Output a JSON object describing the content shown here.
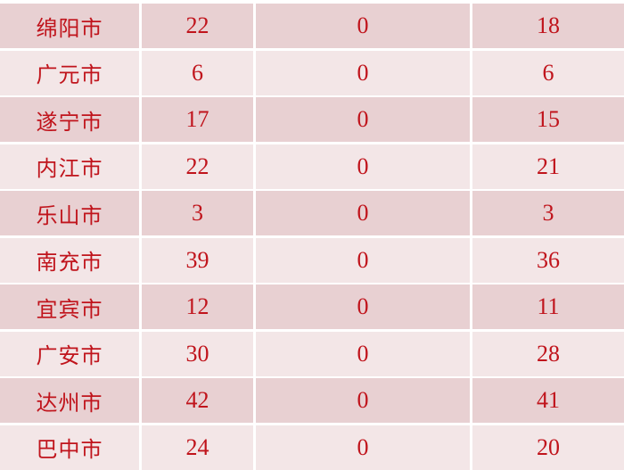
{
  "colors": {
    "text": "#c0141c",
    "row_dark": "#e8d0d2",
    "row_light": "#f3e6e7"
  },
  "rows": [
    {
      "city": "绵阳市",
      "c1": "22",
      "c2": "0",
      "c3": "18"
    },
    {
      "city": "广元市",
      "c1": "6",
      "c2": "0",
      "c3": "6"
    },
    {
      "city": "遂宁市",
      "c1": "17",
      "c2": "0",
      "c3": "15"
    },
    {
      "city": "内江市",
      "c1": "22",
      "c2": "0",
      "c3": "21"
    },
    {
      "city": "乐山市",
      "c1": "3",
      "c2": "0",
      "c3": "3"
    },
    {
      "city": "南充市",
      "c1": "39",
      "c2": "0",
      "c3": "36"
    },
    {
      "city": "宜宾市",
      "c1": "12",
      "c2": "0",
      "c3": "11"
    },
    {
      "city": "广安市",
      "c1": "30",
      "c2": "0",
      "c3": "28"
    },
    {
      "city": "达州市",
      "c1": "42",
      "c2": "0",
      "c3": "41"
    },
    {
      "city": "巴中市",
      "c1": "24",
      "c2": "0",
      "c3": "20"
    }
  ]
}
